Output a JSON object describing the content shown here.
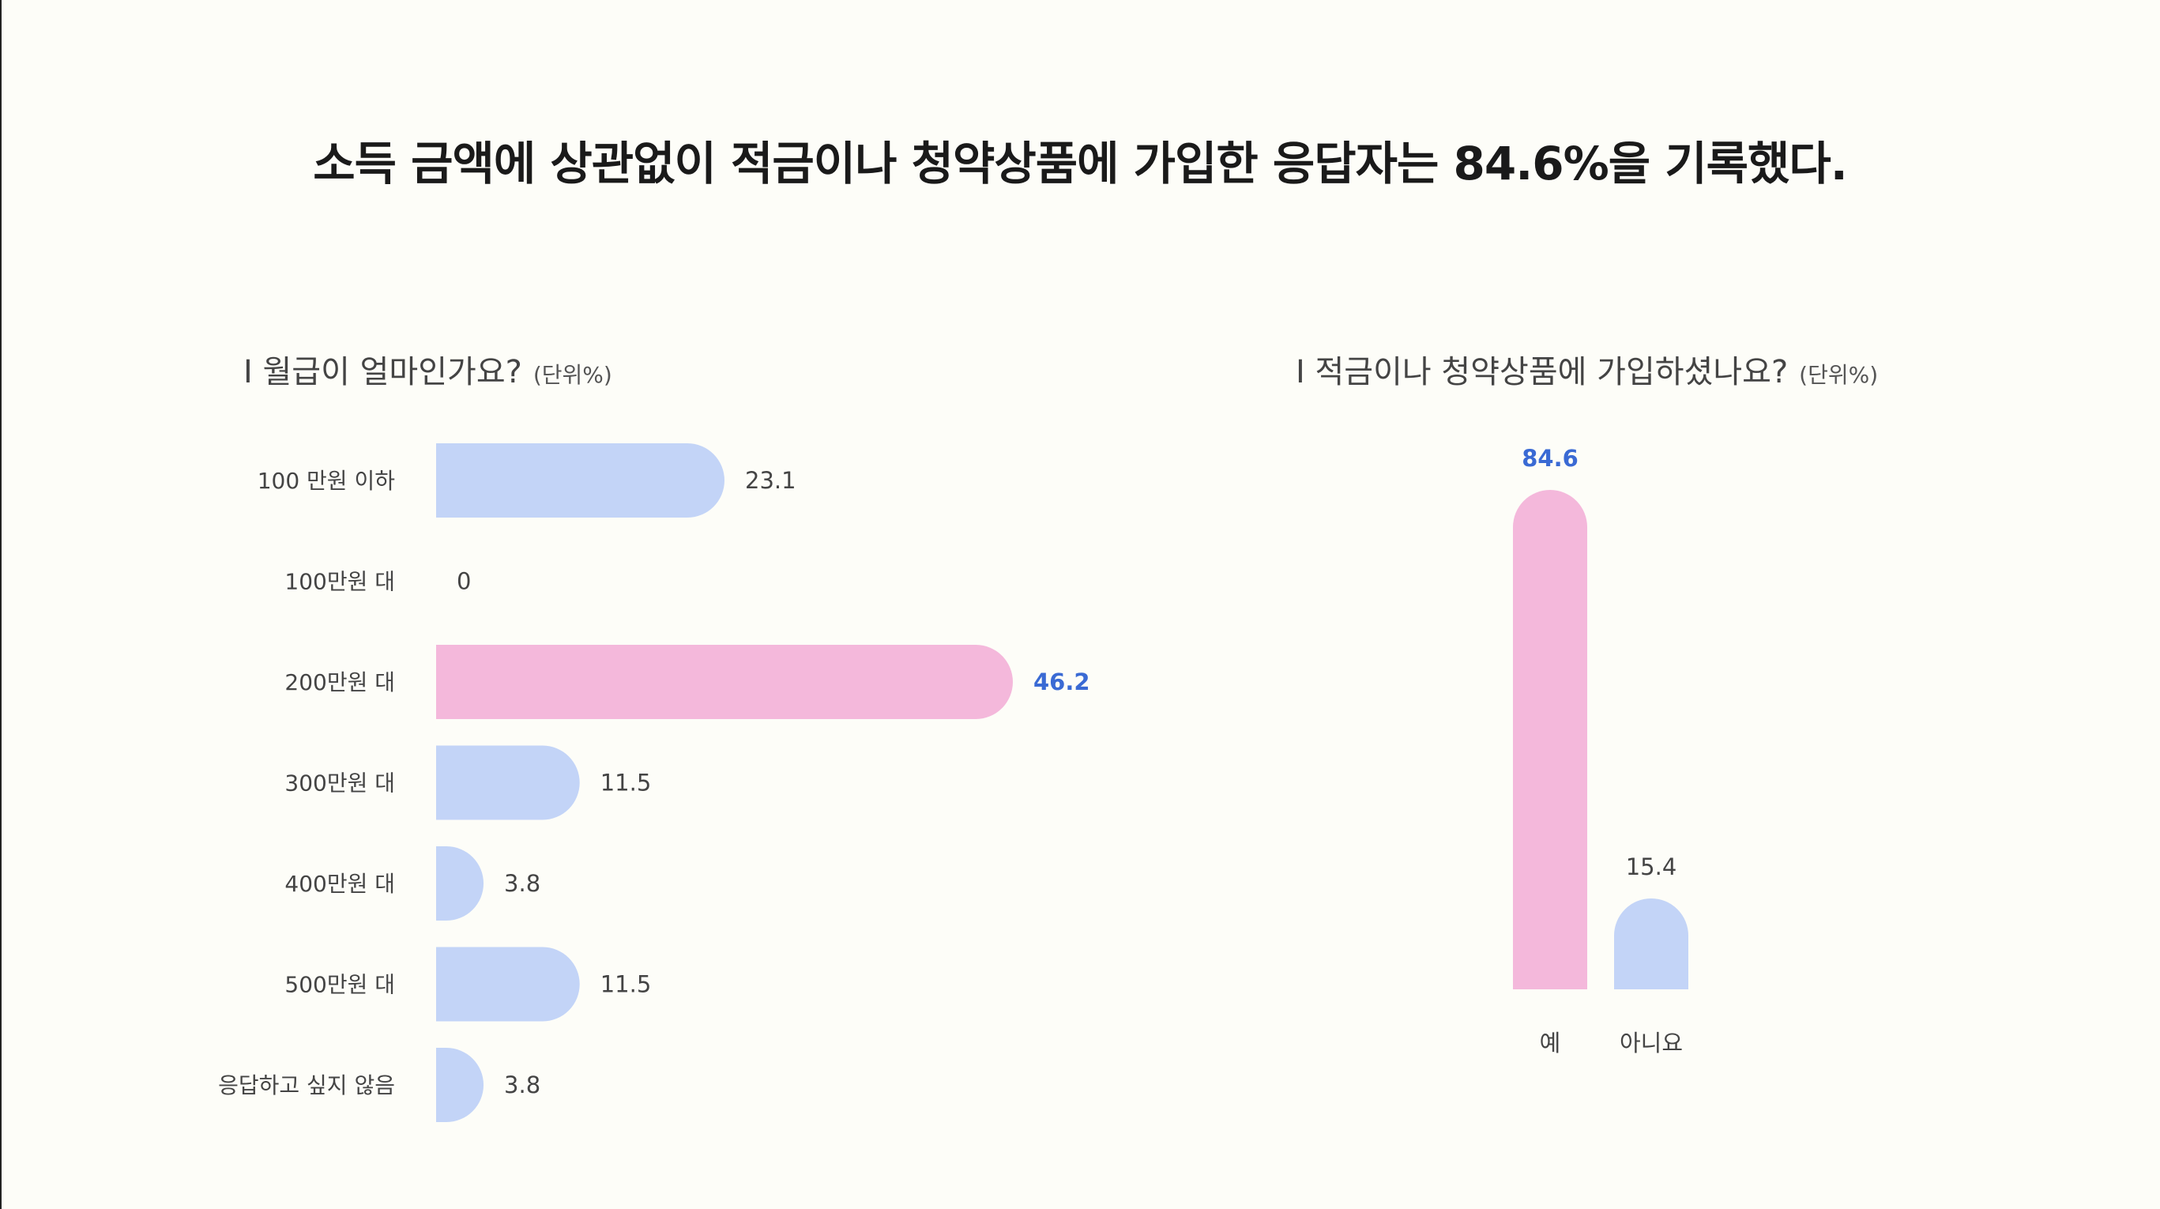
{
  "headline": "소득 금액에 상관없이 적금이나 청약상품에 가입한 응답자는 84.6%을 기록했다.",
  "colors": {
    "base": "#c3d4f7",
    "highlight": "#f4b8db",
    "highlight_text": "#3a6ad4",
    "text": "#444444"
  },
  "chart_data": [
    {
      "type": "bar",
      "orientation": "horizontal",
      "title": "I 월급이 얼마인가요?",
      "unit": "(단위%)",
      "categories": [
        "100 만원 이하",
        "100만원 대",
        "200만원 대",
        "300만원 대",
        "400만원 대",
        "500만원 대",
        "응답하고 싶지 않음"
      ],
      "values": [
        23.1,
        0,
        46.2,
        11.5,
        3.8,
        11.5,
        3.8
      ],
      "value_labels": [
        "23.1",
        "0",
        "46.2",
        "11.5",
        "3.8",
        "11.5",
        "3.8"
      ],
      "highlight_index": 2
    },
    {
      "type": "bar",
      "orientation": "vertical",
      "title": "I 적금이나 청약상품에 가입하셨나요?",
      "unit": "(단위%)",
      "categories": [
        "예",
        "아니요"
      ],
      "values": [
        84.6,
        15.4
      ],
      "value_labels": [
        "84.6",
        "15.4"
      ],
      "highlight_index": 0
    }
  ]
}
